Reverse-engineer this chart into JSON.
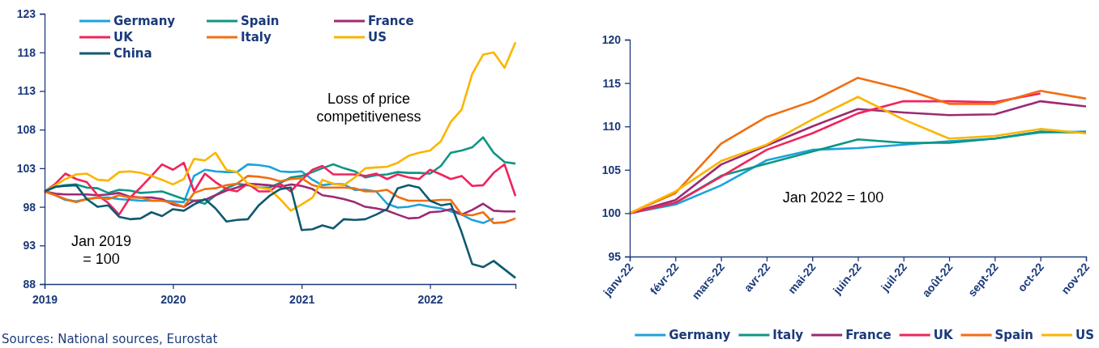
{
  "chart_data": [
    {
      "type": "line",
      "x": [
        "2019-01",
        "2019-02",
        "2019-03",
        "2019-04",
        "2019-05",
        "2019-06",
        "2019-07",
        "2019-08",
        "2019-09",
        "2019-10",
        "2019-11",
        "2019-12",
        "2020-01",
        "2020-02",
        "2020-03",
        "2020-04",
        "2020-05",
        "2020-06",
        "2020-07",
        "2020-08",
        "2020-09",
        "2020-10",
        "2020-11",
        "2020-12",
        "2021-01",
        "2021-02",
        "2021-03",
        "2021-04",
        "2021-05",
        "2021-06",
        "2021-07",
        "2021-08",
        "2021-09",
        "2021-10",
        "2021-11",
        "2021-12",
        "2022-01",
        "2022-02",
        "2022-03",
        "2022-04",
        "2022-05",
        "2022-06",
        "2022-07",
        "2022-08",
        "2022-09"
      ],
      "series": [
        {
          "name": "Germany",
          "color": "#1ba3d9",
          "values": [
            100,
            99.5,
            98.9,
            98.7,
            99.0,
            99.2,
            99.2,
            99.0,
            98.9,
            98.8,
            98.8,
            98.8,
            98.7,
            98.6,
            102.0,
            102.8,
            102.6,
            102.5,
            102.5,
            103.5,
            103.4,
            103.2,
            102.6,
            102.5,
            102.6,
            101.5,
            100.8,
            101.0,
            100.9,
            100.2,
            100.2,
            100.0,
            98.4,
            97.9,
            98.0,
            98.3,
            98.0,
            97.8,
            97.4,
            97.0,
            96.3,
            95.9,
            96.5,
            null,
            null
          ]
        },
        {
          "name": "Spain",
          "color": "#0f9584",
          "values": [
            100,
            100.6,
            100.8,
            100.9,
            100.5,
            100.4,
            99.8,
            100.2,
            100.1,
            99.8,
            99.9,
            100.0,
            99.5,
            99.0,
            98.8,
            98.4,
            99.5,
            100.4,
            101.0,
            100.8,
            100.5,
            100.5,
            101.1,
            101.8,
            102.0,
            102.5,
            103.0,
            103.5,
            103.0,
            102.6,
            101.8,
            102.1,
            102.2,
            102.5,
            102.4,
            102.4,
            102.3,
            103.3,
            105.0,
            105.3,
            105.7,
            107.0,
            105.0,
            103.8,
            103.6
          ]
        },
        {
          "name": "France",
          "color": "#9c2a74",
          "values": [
            100,
            99.7,
            99.6,
            99.6,
            99.6,
            99.5,
            99.6,
            99.8,
            99.3,
            99.2,
            99.2,
            99.0,
            98.3,
            98.0,
            98.8,
            98.9,
            99.5,
            100.1,
            100.5,
            101.0,
            100.9,
            100.8,
            100.6,
            100.9,
            100.7,
            100.3,
            99.5,
            99.3,
            99.0,
            98.6,
            98.0,
            97.8,
            97.5,
            97.0,
            96.5,
            96.6,
            97.3,
            97.4,
            97.7,
            97.0,
            97.6,
            98.4,
            97.5,
            97.4,
            97.4
          ]
        },
        {
          "name": "UK",
          "color": "#f0245c",
          "values": [
            100,
            101.0,
            102.3,
            101.6,
            101.2,
            99.5,
            98.5,
            97.0,
            99.2,
            100.5,
            102.0,
            103.5,
            102.8,
            103.7,
            100.0,
            102.3,
            101.2,
            100.3,
            100.0,
            101.0,
            100.0,
            100.0,
            101.0,
            100.0,
            101.5,
            102.8,
            103.3,
            102.2,
            102.2,
            102.2,
            102.0,
            102.3,
            101.6,
            102.2,
            101.8,
            101.6,
            102.8,
            102.2,
            101.6,
            102.0,
            100.7,
            100.8,
            102.4,
            103.5,
            99.4
          ]
        },
        {
          "name": "Italy",
          "color": "#f26e10",
          "values": [
            100,
            99.5,
            99.0,
            98.6,
            99.0,
            99.2,
            99.0,
            99.5,
            99.2,
            99.2,
            98.8,
            98.8,
            98.5,
            98.0,
            99.8,
            100.3,
            100.4,
            100.8,
            101.0,
            102.0,
            101.9,
            101.7,
            101.3,
            101.6,
            101.7,
            100.8,
            100.5,
            100.5,
            100.5,
            100.4,
            100.0,
            100.0,
            100.2,
            99.3,
            98.8,
            98.8,
            98.8,
            98.9,
            98.9,
            97.0,
            96.9,
            97.3,
            95.9,
            96.0,
            96.5
          ]
        },
        {
          "name": "US",
          "color": "#fbb500",
          "values": [
            100,
            100.8,
            101.6,
            102.2,
            102.3,
            101.5,
            101.4,
            102.5,
            102.6,
            102.4,
            102.0,
            101.5,
            100.9,
            101.6,
            104.2,
            104.0,
            105.0,
            102.8,
            102.5,
            101.0,
            100.5,
            100.3,
            99.0,
            97.5,
            98.3,
            99.2,
            101.5,
            101.0,
            100.8,
            101.8,
            103.0,
            103.1,
            103.2,
            103.7,
            104.6,
            105.0,
            105.3,
            106.5,
            109.0,
            110.6,
            115.2,
            117.7,
            118.0,
            116.0,
            119.3
          ]
        },
        {
          "name": "China",
          "color": "#0e5a73",
          "values": [
            100,
            100.6,
            100.7,
            100.8,
            99.0,
            98.0,
            98.2,
            96.7,
            96.4,
            96.5,
            97.3,
            96.8,
            97.7,
            97.5,
            98.3,
            99.0,
            97.8,
            96.1,
            96.3,
            96.4,
            98.2,
            99.4,
            100.3,
            100.5,
            95.0,
            95.1,
            95.6,
            95.2,
            96.4,
            96.3,
            96.4,
            97.0,
            97.7,
            100.4,
            100.8,
            100.5,
            98.8,
            98.2,
            98.4,
            94.7,
            90.6,
            90.2,
            91.0,
            89.9,
            88.8
          ]
        }
      ],
      "xlim": [
        "2019-01",
        "2022-09"
      ],
      "xticks": [
        "2019",
        "2020",
        "2021",
        "2022"
      ],
      "ylim": [
        88,
        123
      ],
      "yticks": [
        88,
        93,
        98,
        103,
        108,
        113,
        118,
        123
      ],
      "legend": "top",
      "annotations": [
        "Loss of price competitiveness",
        "Jan 2019 = 100",
        "Sources: National sources, Eurostat"
      ]
    },
    {
      "type": "line",
      "categories": [
        "janv-22",
        "févr-22",
        "mars-22",
        "avr-22",
        "mai-22",
        "juin-22",
        "juil-22",
        "août-22",
        "sept-22",
        "oct-22",
        "nov-22"
      ],
      "series": [
        {
          "name": "Germany",
          "color": "#1ba3d9",
          "values": [
            100,
            101.0,
            103.2,
            106.1,
            107.3,
            107.5,
            107.9,
            108.3,
            108.6,
            109.3,
            109.4
          ]
        },
        {
          "name": "Italy",
          "color": "#0f9584",
          "values": [
            100,
            101.2,
            104.3,
            105.7,
            107.1,
            108.5,
            108.1,
            108.1,
            108.6,
            109.4,
            109.3
          ]
        },
        {
          "name": "France",
          "color": "#9c2a74",
          "values": [
            100,
            101.5,
            105.6,
            107.8,
            110.0,
            112.0,
            111.6,
            111.3,
            111.4,
            112.9,
            112.3
          ]
        },
        {
          "name": "UK",
          "color": "#f0245c",
          "values": [
            100,
            101.2,
            104.2,
            107.3,
            109.2,
            111.5,
            112.9,
            112.9,
            112.8,
            113.8,
            null
          ]
        },
        {
          "name": "Spain",
          "color": "#f26e10",
          "values": [
            100,
            102.3,
            108.0,
            111.1,
            112.9,
            115.6,
            114.3,
            112.6,
            112.6,
            114.1,
            113.2
          ]
        },
        {
          "name": "US",
          "color": "#fbb500",
          "values": [
            100,
            102.5,
            106.0,
            107.9,
            110.8,
            113.4,
            110.8,
            108.6,
            108.9,
            109.7,
            109.2
          ]
        }
      ],
      "ylim": [
        95,
        120
      ],
      "yticks": [
        95,
        100,
        105,
        110,
        115,
        120
      ],
      "legend": "bottom",
      "annotations": [
        "Jan 2022 = 100"
      ]
    }
  ]
}
